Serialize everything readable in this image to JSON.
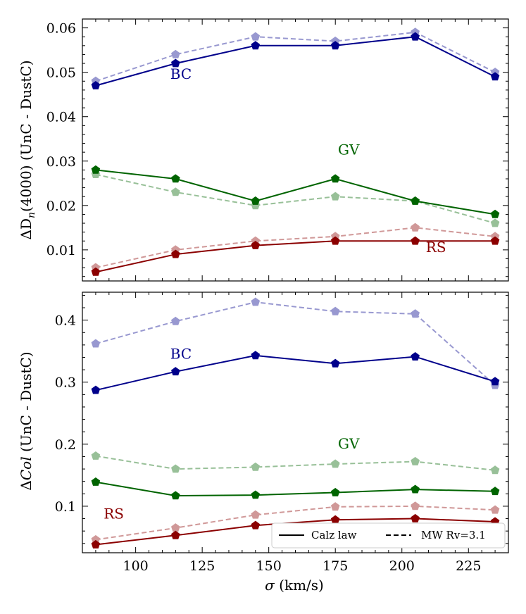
{
  "colors": {
    "BC": "#00008b",
    "GV": "#006400",
    "RS": "#8b0000"
  },
  "legend": {
    "solid_label": "Calz law",
    "dashed_label": "MW Rv=3.1",
    "placement": "bottom-right (lower panel)"
  },
  "chart_data": [
    {
      "type": "line",
      "panel": "top",
      "x": [
        85,
        115,
        145,
        175,
        205,
        235
      ],
      "xlim": [
        80,
        240
      ],
      "ylim": [
        0.003,
        0.062
      ],
      "xticks": [
        100,
        125,
        150,
        175,
        200,
        225
      ],
      "yticks": [
        0.01,
        0.02,
        0.03,
        0.04,
        0.05,
        0.06
      ],
      "ytick_labels": [
        "0.01",
        "0.02",
        "0.03",
        "0.04",
        "0.05",
        "0.06"
      ],
      "ylabel_prefix": "ΔD",
      "ylabel_sub": "n",
      "ylabel_suffix": "(4000) (UnC - DustC)",
      "series": [
        {
          "group": "BC",
          "law": "Calz law",
          "values": [
            0.047,
            0.052,
            0.056,
            0.056,
            0.058,
            0.049
          ]
        },
        {
          "group": "BC",
          "law": "MW Rv=3.1",
          "values": [
            0.048,
            0.054,
            0.058,
            0.057,
            0.059,
            0.05
          ]
        },
        {
          "group": "GV",
          "law": "Calz law",
          "values": [
            0.028,
            0.026,
            0.021,
            0.026,
            0.021,
            0.018
          ]
        },
        {
          "group": "GV",
          "law": "MW Rv=3.1",
          "values": [
            0.027,
            0.023,
            0.02,
            0.022,
            0.021,
            0.016
          ]
        },
        {
          "group": "RS",
          "law": "Calz law",
          "values": [
            0.005,
            0.009,
            0.011,
            0.012,
            0.012,
            0.012
          ]
        },
        {
          "group": "RS",
          "law": "MW Rv=3.1",
          "values": [
            0.006,
            0.01,
            0.012,
            0.013,
            0.015,
            0.013
          ]
        }
      ],
      "annotations": [
        {
          "text": "BC",
          "group": "BC",
          "x": 113,
          "y": 0.0485
        },
        {
          "text": "GV",
          "group": "GV",
          "x": 176,
          "y": 0.0315
        },
        {
          "text": "RS",
          "group": "RS",
          "x": 209,
          "y": 0.0095
        }
      ]
    },
    {
      "type": "line",
      "panel": "bottom",
      "x": [
        85,
        115,
        145,
        175,
        205,
        235
      ],
      "xlim": [
        80,
        240
      ],
      "ylim": [
        0.025,
        0.445
      ],
      "xticks": [
        100,
        125,
        150,
        175,
        200,
        225
      ],
      "yticks": [
        0.1,
        0.2,
        0.3,
        0.4
      ],
      "ytick_labels": [
        "0.1",
        "0.2",
        "0.3",
        "0.4"
      ],
      "xtick_labels": [
        "100",
        "125",
        "150",
        "175",
        "200",
        "225"
      ],
      "xlabel_symbol": "σ",
      "xlabel_rest": " (km/s)",
      "ylabel_prefix": "Δ",
      "ylabel_italic": "Col",
      "ylabel_suffix": " (UnC - DustC)",
      "series": [
        {
          "group": "BC",
          "law": "Calz law",
          "values": [
            0.287,
            0.317,
            0.343,
            0.33,
            0.341,
            0.301
          ]
        },
        {
          "group": "BC",
          "law": "MW Rv=3.1",
          "values": [
            0.362,
            0.398,
            0.429,
            0.414,
            0.41,
            0.295
          ]
        },
        {
          "group": "GV",
          "law": "Calz law",
          "values": [
            0.139,
            0.117,
            0.118,
            0.122,
            0.127,
            0.124
          ]
        },
        {
          "group": "GV",
          "law": "MW Rv=3.1",
          "values": [
            0.181,
            0.16,
            0.163,
            0.168,
            0.172,
            0.158
          ]
        },
        {
          "group": "RS",
          "law": "Calz law",
          "values": [
            0.038,
            0.053,
            0.069,
            0.078,
            0.08,
            0.075
          ]
        },
        {
          "group": "RS",
          "law": "MW Rv=3.1",
          "values": [
            0.046,
            0.065,
            0.086,
            0.099,
            0.1,
            0.094
          ]
        }
      ],
      "annotations": [
        {
          "text": "BC",
          "group": "BC",
          "x": 113,
          "y": 0.338
        },
        {
          "text": "GV",
          "group": "GV",
          "x": 176,
          "y": 0.193
        },
        {
          "text": "RS",
          "group": "RS",
          "x": 88,
          "y": 0.08
        }
      ]
    }
  ]
}
